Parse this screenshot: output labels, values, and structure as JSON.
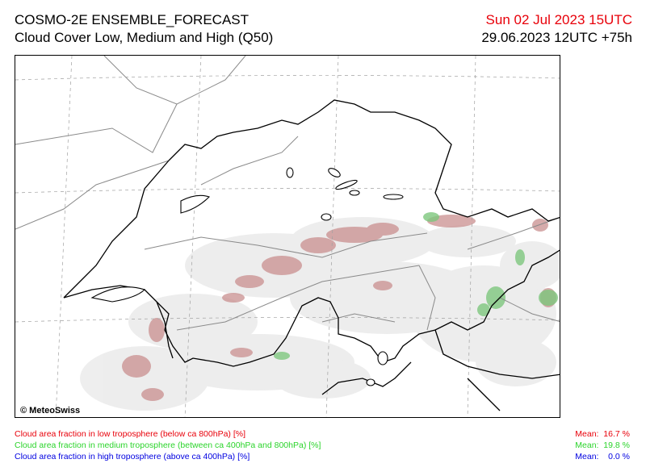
{
  "header": {
    "title": "COSMO-2E ENSEMBLE_FORECAST",
    "subtitle": "Cloud Cover Low, Medium and High (Q50)",
    "valid_time": "Sun 02 Jul 2023 15UTC",
    "run_time": "29.06.2023 12UTC +75h",
    "valid_time_color": "#e8000a"
  },
  "map": {
    "credit": "© MeteoSwiss",
    "colors": {
      "low_cloud": "#c98f8f",
      "medium_cloud": "#7ec77e",
      "light_cloud": "#ececec",
      "borders": "#000000",
      "grid": "#a0a0a0"
    }
  },
  "legend": {
    "low": {
      "label": "Cloud area fraction in low troposphere (below ca 800hPa) [%]",
      "mean_label": "Mean:",
      "mean_value": "16.7 %",
      "color": "#e8000a"
    },
    "medium": {
      "label": "Cloud area fraction in medium troposphere (between ca 400hPa and 800hPa) [%]",
      "mean_label": "Mean:",
      "mean_value": "19.8 %",
      "color": "#2bd42b"
    },
    "high": {
      "label": "Cloud area fraction in high troposphere (above ca 400hPa) [%]",
      "mean_label": "Mean:",
      "mean_value": "0.0 %",
      "color": "#0000e0"
    }
  }
}
